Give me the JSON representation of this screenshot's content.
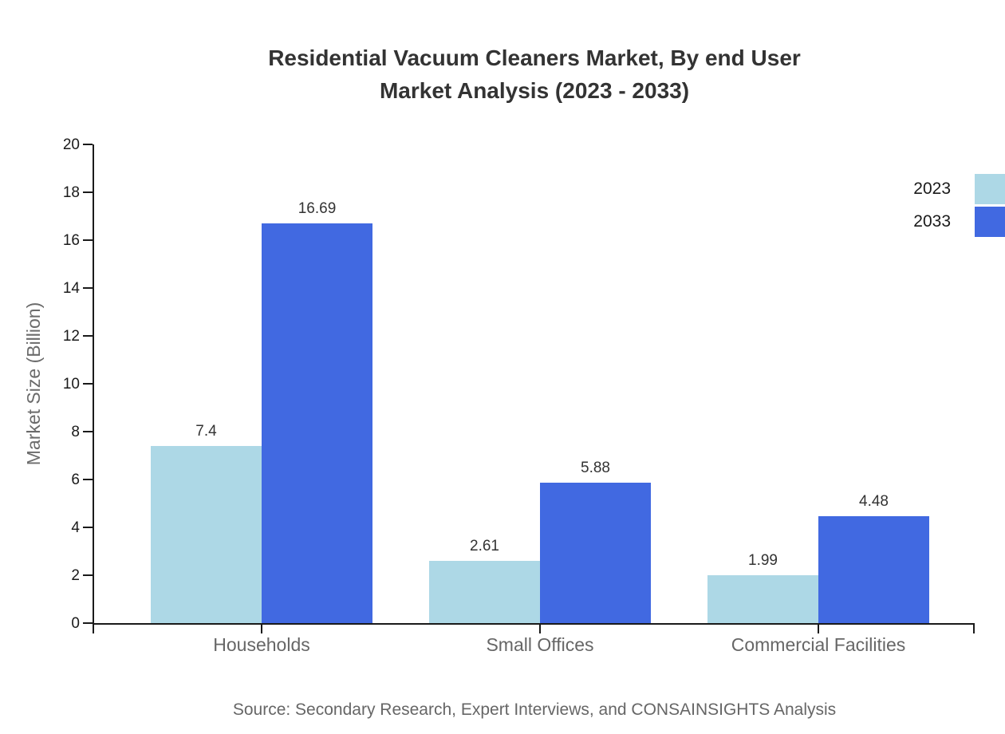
{
  "title": {
    "line1": "Residential Vacuum Cleaners Market, By end User",
    "line2": "Market Analysis (2023 - 2033)"
  },
  "source": "Source: Secondary Research, Expert Interviews, and CONSAINSIGHTS Analysis",
  "chart_data": {
    "type": "bar",
    "title": "Residential Vacuum Cleaners Market, By end User Market Analysis (2023 - 2033)",
    "categories": [
      "Households",
      "Small Offices",
      "Commercial Facilities"
    ],
    "series": [
      {
        "name": "2023",
        "color": "#ADD8E6",
        "values": [
          7.4,
          2.61,
          1.99
        ]
      },
      {
        "name": "2033",
        "color": "#4169E1",
        "values": [
          16.69,
          5.88,
          4.48
        ]
      }
    ],
    "xlabel": "",
    "ylabel": "Market Size (Billion)",
    "ylim": [
      0,
      20
    ],
    "ytick_step": 2,
    "grid": false,
    "legend_position": "right",
    "axis_color": "#1a1a1a",
    "tick_label_color": "#1a1a1a",
    "value_label_color": "#333333",
    "category_label_color": "#666666"
  }
}
